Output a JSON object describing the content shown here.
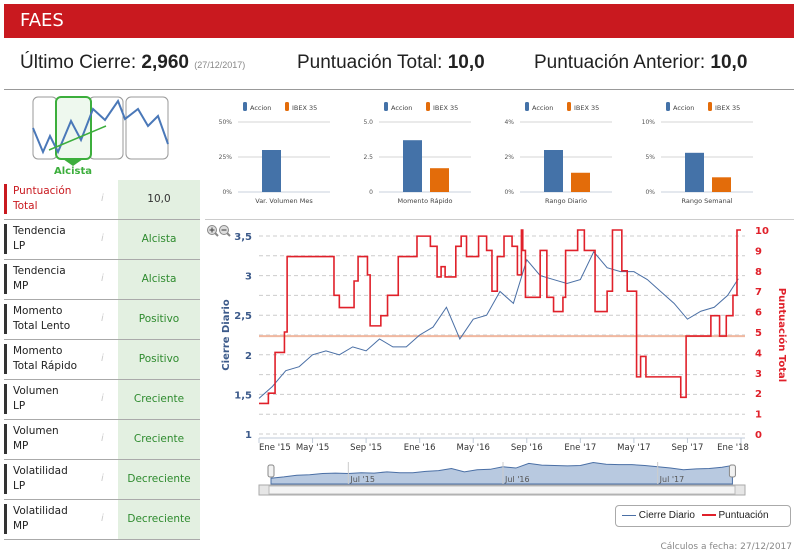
{
  "header": {
    "title": "FAES"
  },
  "summary": {
    "last_close_label": "Último Cierre:",
    "last_close_value": "2,960",
    "last_close_date": "(27/12/2017)",
    "total_score_label": "Puntuación Total:",
    "total_score_value": "10,0",
    "prev_score_label": "Puntuación Anterior:",
    "prev_score_value": "10,0"
  },
  "trend_gauge": {
    "label": "Alcista",
    "color": "#3cae3c"
  },
  "rows": [
    {
      "label1": "Puntuación",
      "label2": "Total",
      "value": "10,0"
    },
    {
      "label1": "Tendencia",
      "label2": "LP",
      "value": "Alcista"
    },
    {
      "label1": "Tendencia",
      "label2": "MP",
      "value": "Alcista"
    },
    {
      "label1": "Momento",
      "label2": "Total Lento",
      "value": "Positivo"
    },
    {
      "label1": "Momento",
      "label2": "Total Rápido",
      "value": "Positivo"
    },
    {
      "label1": "Volumen",
      "label2": "LP",
      "value": "Creciente"
    },
    {
      "label1": "Volumen",
      "label2": "MP",
      "value": "Creciente"
    },
    {
      "label1": "Volatilidad",
      "label2": "LP",
      "value": "Decreciente"
    },
    {
      "label1": "Volatilidad",
      "label2": "MP",
      "value": "Decreciente"
    }
  ],
  "info_icon": "i",
  "chart_data": [
    {
      "type": "bar",
      "title": "Var. Volumen Mes",
      "legend": [
        "Accion",
        "IBEX 35"
      ],
      "colors": [
        "#4472a8",
        "#e36c0a"
      ],
      "values": [
        30,
        0
      ],
      "yticks": [
        "0%",
        "25%",
        "50%"
      ],
      "ylim": [
        0,
        50
      ]
    },
    {
      "type": "bar",
      "title": "Momento Rápido",
      "legend": [
        "Accion",
        "IBEX 35"
      ],
      "colors": [
        "#4472a8",
        "#e36c0a"
      ],
      "values": [
        3.7,
        1.7
      ],
      "yticks": [
        "0",
        "2.5",
        "5.0"
      ],
      "ylim": [
        0,
        5
      ]
    },
    {
      "type": "bar",
      "title": "Rango Diario",
      "legend": [
        "Accion",
        "IBEX 35"
      ],
      "colors": [
        "#4472a8",
        "#e36c0a"
      ],
      "values": [
        2.4,
        1.1
      ],
      "yticks": [
        "0%",
        "2%",
        "4%"
      ],
      "ylim": [
        0,
        4
      ]
    },
    {
      "type": "bar",
      "title": "Rango Semanal",
      "legend": [
        "Accion",
        "IBEX 35"
      ],
      "colors": [
        "#4472a8",
        "#e36c0a"
      ],
      "values": [
        5.6,
        2.1
      ],
      "yticks": [
        "0%",
        "5%",
        "10%"
      ],
      "ylim": [
        0,
        10
      ]
    },
    {
      "type": "line",
      "ylabel_left": "Cierre Diario",
      "ylabel_right": "Puntuación Total",
      "ylim_left": [
        1,
        3.5
      ],
      "ylim_right": [
        0,
        10
      ],
      "yticks_left": [
        "1",
        "1,5",
        "2",
        "2,5",
        "3",
        "3,5"
      ],
      "yticks_right": [
        "0",
        "1",
        "2",
        "3",
        "4",
        "5",
        "6",
        "7",
        "8",
        "9",
        "10"
      ],
      "xticks": [
        "Ene '15",
        "May '15",
        "Sep '15",
        "Ene '16",
        "May '16",
        "Sep '16",
        "Ene '17",
        "May '17",
        "Sep '17",
        "Ene '18"
      ],
      "x_unit": "months since Jan 2015",
      "xlim": [
        0,
        36
      ],
      "reference_line": {
        "score": 4.8,
        "color": "#f0b8a0"
      },
      "series": [
        {
          "name": "Cierre Diario",
          "color": "#4a6fa5",
          "x": [
            0,
            1,
            2,
            3,
            4,
            5,
            6,
            7,
            8,
            9,
            10,
            11,
            12,
            13,
            14,
            15,
            16,
            17,
            18,
            19,
            20,
            21,
            22,
            23,
            24,
            25,
            26,
            27,
            28,
            29,
            30,
            31,
            32,
            33,
            34,
            35,
            35.8
          ],
          "values": [
            1.45,
            1.6,
            1.8,
            1.85,
            2.0,
            2.05,
            2.0,
            2.1,
            2.05,
            2.2,
            2.1,
            2.1,
            2.25,
            2.35,
            2.6,
            2.2,
            2.45,
            2.5,
            2.8,
            2.65,
            3.2,
            3.0,
            2.95,
            2.9,
            2.95,
            3.3,
            3.1,
            3.05,
            3.05,
            2.95,
            2.8,
            2.65,
            2.45,
            2.55,
            2.6,
            2.75,
            2.96
          ]
        },
        {
          "name": "Puntuación",
          "color": "#e0202a",
          "step": true,
          "x": [
            0,
            0.7,
            1.2,
            1.9,
            2.1,
            5.6,
            6,
            7.1,
            7.4,
            8.1,
            8.3,
            9.1,
            9.6,
            10.4,
            11.8,
            12.8,
            13.3,
            13.6,
            13.9,
            14.7,
            15.1,
            15.5,
            16.4,
            17,
            17.4,
            17.8,
            18.3,
            18.9,
            19.3,
            19.6,
            19.7,
            19.9,
            21,
            21.5,
            22,
            22.7,
            22.9,
            23.8,
            24.3,
            25.1,
            26,
            26.4,
            27.1,
            27.5,
            28.2,
            28.5,
            28.9,
            31.5,
            31.9,
            33.75,
            34.4,
            34.9,
            35.4,
            35.7
          ],
          "values": [
            1.5,
            2,
            4,
            5,
            8.7,
            6.8,
            6.2,
            7.5,
            8.7,
            7.8,
            5.3,
            5.8,
            6.8,
            8.7,
            9.7,
            9.2,
            7.7,
            8.2,
            7.7,
            9.2,
            9.7,
            8.7,
            9.7,
            9,
            7,
            8.7,
            9.7,
            9.2,
            7.8,
            10,
            9,
            6.7,
            9,
            6.7,
            6,
            6.7,
            9,
            10,
            9,
            6,
            7,
            10,
            8,
            7,
            2.8,
            3.8,
            2.8,
            1.8,
            4.8,
            5.8,
            4.8,
            5.8,
            6.8,
            10
          ]
        }
      ],
      "navigator": {
        "labels": [
          "Jul '15",
          "Jul '16",
          "Jul '17"
        ]
      },
      "zoom_in_icon": "zoom-in",
      "zoom_out_icon": "zoom-out"
    }
  ],
  "legend": {
    "series1": "Cierre Diario",
    "series2": "Puntuación"
  },
  "footer": {
    "calc_date": "Cálculos a fecha: 27/12/2017"
  }
}
